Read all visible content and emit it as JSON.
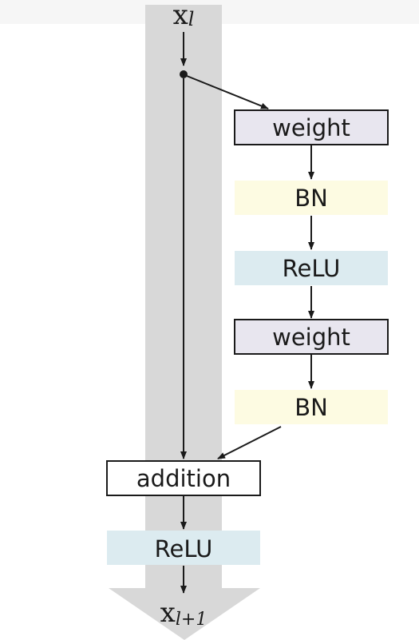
{
  "diagram": {
    "input_var": {
      "base": "x",
      "sub": "l"
    },
    "output_var": {
      "base": "x",
      "sub": "l+1"
    },
    "residual_branch": [
      {
        "label": "weight",
        "type": "weight"
      },
      {
        "label": "BN",
        "type": "bn"
      },
      {
        "label": "ReLU",
        "type": "relu"
      },
      {
        "label": "weight",
        "type": "weight"
      },
      {
        "label": "BN",
        "type": "bn"
      }
    ],
    "merge": {
      "label": "addition",
      "type": "addition"
    },
    "post_activation": {
      "label": "ReLU",
      "type": "relu"
    },
    "colors": {
      "weight_fill": "#e8e6ef",
      "bn_fill": "#fdfbe2",
      "relu_fill": "#dcebf0",
      "addition_fill": "#ffffff",
      "shortcut_band": "#d8d8d8",
      "line": "#1a1a1a"
    }
  }
}
